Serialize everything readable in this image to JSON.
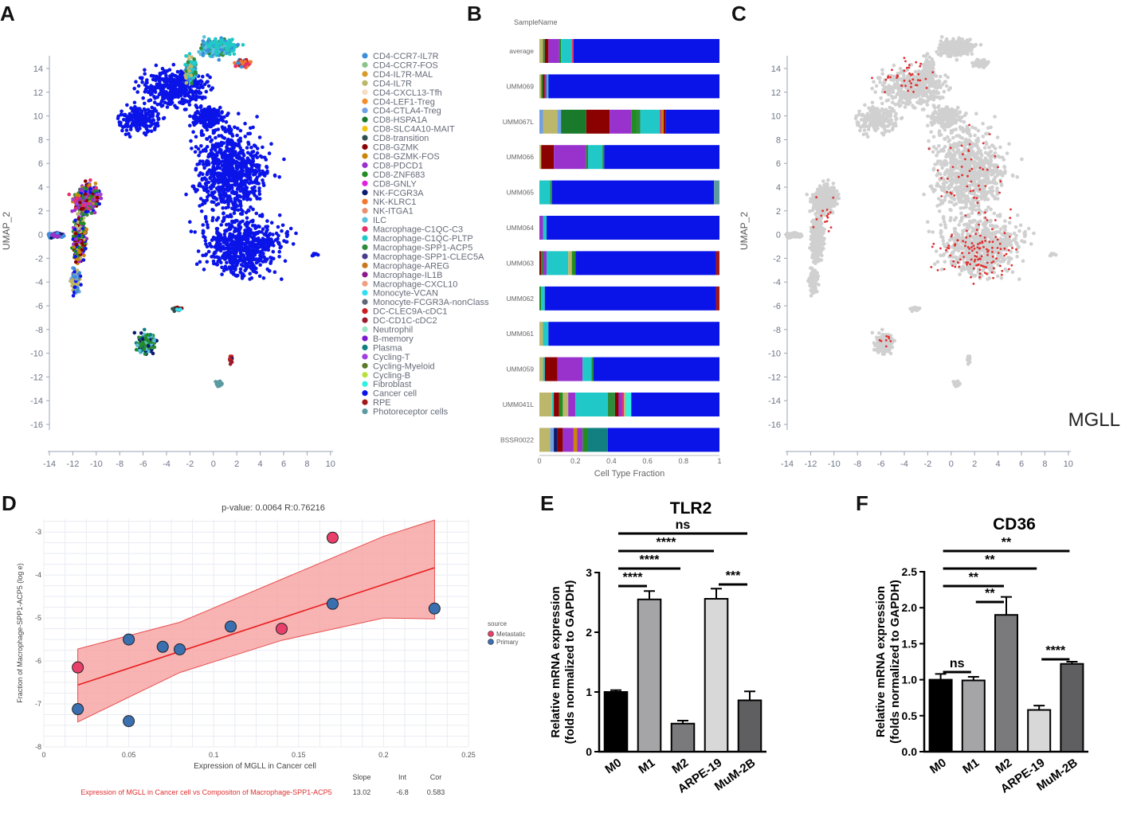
{
  "panel_labels": {
    "a": "A",
    "b": "B",
    "c": "C",
    "d": "D",
    "e": "E",
    "f": "F"
  },
  "colors": {
    "axis": "#9aa3b5",
    "umap_grey": "#d0d0d0",
    "mgll_red": "#e03030",
    "cancer_blue": "#1010ee",
    "regression": "#e82020",
    "ci_fill": "#f7a6a6",
    "metastatic": "#e8406a",
    "primary": "#3a6fb0"
  },
  "panel_a": {
    "ylabel": "UMAP_2",
    "x_ticks": [
      "-14",
      "-12",
      "-10",
      "-8",
      "-6",
      "-4",
      "-2",
      "0",
      "2",
      "4",
      "6",
      "8",
      "10"
    ],
    "y_ticks": [
      "14",
      "12",
      "10",
      "8",
      "6",
      "4",
      "2",
      "0",
      "-2",
      "-4",
      "-6",
      "-8",
      "-10",
      "-12",
      "-14",
      "-16"
    ],
    "legend": [
      {
        "label": "CD4-CCR7-IL7R",
        "color": "#3b8fd9"
      },
      {
        "label": "CD4-CCR7-FOS",
        "color": "#8bc48b"
      },
      {
        "label": "CD4-IL7R-MAL",
        "color": "#d89b2a"
      },
      {
        "label": "CD4-IL7R",
        "color": "#bdb76b"
      },
      {
        "label": "CD4-CXCL13-Tfh",
        "color": "#f7dcc4"
      },
      {
        "label": "CD4-LEF1-Treg",
        "color": "#f28e2b"
      },
      {
        "label": "CD4-CTLA4-Treg",
        "color": "#6fa0e6"
      },
      {
        "label": "CD8-HSPA1A",
        "color": "#1a7a2c"
      },
      {
        "label": "CD8-SLC4A10-MAIT",
        "color": "#f2c40f"
      },
      {
        "label": "CD8-transition",
        "color": "#2f4f4f"
      },
      {
        "label": "CD8-GZMK",
        "color": "#8b0000"
      },
      {
        "label": "CD8-GZMK-FOS",
        "color": "#c8860a"
      },
      {
        "label": "CD8-PDCD1",
        "color": "#9932cc"
      },
      {
        "label": "CD8-ZNF683",
        "color": "#228b22"
      },
      {
        "label": "CD8-GNLY",
        "color": "#e020e0"
      },
      {
        "label": "NK-FCGR3A",
        "color": "#0a1a6e"
      },
      {
        "label": "NK-KLRC1",
        "color": "#f07830"
      },
      {
        "label": "NK-ITGA1",
        "color": "#e89070"
      },
      {
        "label": "ILC",
        "color": "#5bc0de"
      },
      {
        "label": "Macrophage-C1QC-C3",
        "color": "#e8306a"
      },
      {
        "label": "Macrophage-C1QC-PLTP",
        "color": "#20c8c8"
      },
      {
        "label": "Macrophage-SPP1-ACP5",
        "color": "#2e8b3a"
      },
      {
        "label": "Macrophage-SPP1-CLEC5A",
        "color": "#483d8b"
      },
      {
        "label": "Macrophage-AREG",
        "color": "#c87820"
      },
      {
        "label": "Macrophage-IL1B",
        "color": "#8b1a8b"
      },
      {
        "label": "Macrophage-CXCL10",
        "color": "#f0a080"
      },
      {
        "label": "Monocyte-VCAN",
        "color": "#30e0f0"
      },
      {
        "label": "Monocyte-FCGR3A-nonClass",
        "color": "#606878"
      },
      {
        "label": "DC-CLEC9A-cDC1",
        "color": "#c81e1e"
      },
      {
        "label": "DC-CD1C-cDC2",
        "color": "#9a1a2a"
      },
      {
        "label": "Neutrophil",
        "color": "#98e8c8"
      },
      {
        "label": "B-memory",
        "color": "#7a1ad0"
      },
      {
        "label": "Plasma",
        "color": "#128080"
      },
      {
        "label": "Cycling-T",
        "color": "#a040e0"
      },
      {
        "label": "Cycling-Myeloid",
        "color": "#5a7a2a"
      },
      {
        "label": "Cycling-B",
        "color": "#b8e040"
      },
      {
        "label": "Fibroblast",
        "color": "#30f0e0"
      },
      {
        "label": "Cancer cell",
        "color": "#0a14e8"
      },
      {
        "label": "RPE",
        "color": "#a01818"
      },
      {
        "label": "Photoreceptor cells",
        "color": "#5a9aa0"
      }
    ]
  },
  "panel_b": {
    "title": "SampleName",
    "xlabel": "Cell Type Fraction",
    "x_ticks": [
      "0",
      "0.2",
      "0.4",
      "0.6",
      "0.8",
      "1"
    ],
    "samples": [
      {
        "name": "average",
        "segments": [
          [
            "#bdb76b",
            0.02
          ],
          [
            "#2e8b3a",
            0.01
          ],
          [
            "#8b0000",
            0.02
          ],
          [
            "#9932cc",
            0.06
          ],
          [
            "#228b22",
            0.01
          ],
          [
            "#20c8c8",
            0.06
          ],
          [
            "#e8306a",
            0.01
          ],
          [
            "#0a14e8",
            0.81
          ]
        ]
      },
      {
        "name": "UMM069",
        "segments": [
          [
            "#bdb76b",
            0.01
          ],
          [
            "#228b22",
            0.01
          ],
          [
            "#8b0000",
            0.01
          ],
          [
            "#9932cc",
            0.01
          ],
          [
            "#20c8c8",
            0.01
          ],
          [
            "#0a14e8",
            0.95
          ]
        ]
      },
      {
        "name": "UMM067L",
        "segments": [
          [
            "#6fa0e6",
            0.02
          ],
          [
            "#bdb76b",
            0.08
          ],
          [
            "#6fa0e6",
            0.02
          ],
          [
            "#1a7a2c",
            0.14
          ],
          [
            "#8b0000",
            0.13
          ],
          [
            "#9932cc",
            0.12
          ],
          [
            "#228b22",
            0.03
          ],
          [
            "#2e8b3a",
            0.02
          ],
          [
            "#20c8c8",
            0.11
          ],
          [
            "#e8306a",
            0.01
          ],
          [
            "#c8860a",
            0.01
          ],
          [
            "#8b0000",
            0.01
          ],
          [
            "#0a14e8",
            0.3
          ]
        ]
      },
      {
        "name": "UMM066",
        "segments": [
          [
            "#bdb76b",
            0.01
          ],
          [
            "#8b0000",
            0.07
          ],
          [
            "#9932cc",
            0.18
          ],
          [
            "#228b22",
            0.01
          ],
          [
            "#20c8c8",
            0.08
          ],
          [
            "#2e8b3a",
            0.01
          ],
          [
            "#0a14e8",
            0.64
          ]
        ]
      },
      {
        "name": "UMM065",
        "segments": [
          [
            "#20c8c8",
            0.06
          ],
          [
            "#2e8b3a",
            0.01
          ],
          [
            "#0a14e8",
            0.9
          ],
          [
            "#5a9aa0",
            0.03
          ]
        ]
      },
      {
        "name": "UMM064",
        "segments": [
          [
            "#9932cc",
            0.02
          ],
          [
            "#20c8c8",
            0.02
          ],
          [
            "#0a14e8",
            0.96
          ]
        ]
      },
      {
        "name": "UMM063",
        "segments": [
          [
            "#8b0000",
            0.01
          ],
          [
            "#228b22",
            0.01
          ],
          [
            "#9932cc",
            0.02
          ],
          [
            "#20c8c8",
            0.12
          ],
          [
            "#bdb76b",
            0.02
          ],
          [
            "#228b22",
            0.02
          ],
          [
            "#0a14e8",
            0.78
          ],
          [
            "#a01818",
            0.02
          ]
        ]
      },
      {
        "name": "UMM062",
        "segments": [
          [
            "#228b22",
            0.01
          ],
          [
            "#20c8c8",
            0.02
          ],
          [
            "#0a14e8",
            0.95
          ],
          [
            "#a01818",
            0.02
          ]
        ]
      },
      {
        "name": "UMM061",
        "segments": [
          [
            "#bdb76b",
            0.02
          ],
          [
            "#20c8c8",
            0.03
          ],
          [
            "#0a14e8",
            0.95
          ]
        ]
      },
      {
        "name": "UMM059",
        "segments": [
          [
            "#bdb76b",
            0.02
          ],
          [
            "#20c8c8",
            0.01
          ],
          [
            "#8b0000",
            0.07
          ],
          [
            "#9932cc",
            0.14
          ],
          [
            "#20c8c8",
            0.05
          ],
          [
            "#228b22",
            0.01
          ],
          [
            "#0a14e8",
            0.7
          ]
        ]
      },
      {
        "name": "UMM041L",
        "segments": [
          [
            "#bdb76b",
            0.07
          ],
          [
            "#20c8c8",
            0.01
          ],
          [
            "#8b0000",
            0.03
          ],
          [
            "#228b22",
            0.02
          ],
          [
            "#bdb76b",
            0.03
          ],
          [
            "#9932cc",
            0.04
          ],
          [
            "#20c8c8",
            0.18
          ],
          [
            "#2e8b3a",
            0.04
          ],
          [
            "#8b0000",
            0.02
          ],
          [
            "#9932cc",
            0.02
          ],
          [
            "#e8306a",
            0.01
          ],
          [
            "#bdb76b",
            0.01
          ],
          [
            "#30f0e0",
            0.03
          ],
          [
            "#0a14e8",
            0.49
          ]
        ]
      },
      {
        "name": "BSSR0022",
        "segments": [
          [
            "#bdb76b",
            0.06
          ],
          [
            "#6fa0e6",
            0.02
          ],
          [
            "#0a1a6e",
            0.02
          ],
          [
            "#8b0000",
            0.03
          ],
          [
            "#9932cc",
            0.06
          ],
          [
            "#c8860a",
            0.02
          ],
          [
            "#9932cc",
            0.03
          ],
          [
            "#228b22",
            0.03
          ],
          [
            "#128080",
            0.11
          ],
          [
            "#0a14e8",
            0.62
          ]
        ]
      }
    ]
  },
  "panel_c": {
    "ylabel": "UMAP_2",
    "gene": "MGLL",
    "x_ticks": [
      "-14",
      "-12",
      "-10",
      "-8",
      "-6",
      "-4",
      "-2",
      "0",
      "2",
      "4",
      "6",
      "8",
      "10"
    ],
    "y_ticks": [
      "14",
      "12",
      "10",
      "8",
      "6",
      "4",
      "2",
      "0",
      "-2",
      "-4",
      "-6",
      "-8",
      "-10",
      "-12",
      "-14",
      "-16"
    ]
  },
  "panel_d": {
    "title": "p-value: 0.0064    R:0.76216",
    "xlabel": "Expression of MGLL in Cancer cell",
    "ylabel": "Fraction of Macrophage-SPP1-ACP5 (log e)",
    "legend_title": "source",
    "legend_items": [
      "Metastatic",
      "Primary"
    ],
    "caption": "Expression of MGLL in Cancer cell vs Compositon of Macrophage-SPP1-ACP5",
    "stats_headers": [
      "Slope",
      "Int",
      "Cor"
    ],
    "stats_values": [
      "13.02",
      "-6.8",
      "0.583"
    ]
  },
  "panel_e": {
    "title": "TLR2",
    "ylabel": "Relative  mRNA  expression",
    "ylabel2": "(folds normalized to GAPDH)",
    "y_ticks": [
      "0",
      "1",
      "2",
      "3"
    ],
    "sig": [
      {
        "label": "ns"
      },
      {
        "label": "****"
      },
      {
        "label": "****"
      },
      {
        "label": "****"
      },
      {
        "label": "***"
      }
    ]
  },
  "panel_f": {
    "title": "CD36",
    "ylabel": "Relative  mRNA  expression",
    "ylabel2": "(folds normalized to GAPDH)",
    "y_ticks": [
      "0.0",
      "0.5",
      "1.0",
      "1.5",
      "2.0",
      "2.5"
    ],
    "sig": [
      {
        "label": "**"
      },
      {
        "label": "**"
      },
      {
        "label": "**"
      },
      {
        "label": "**"
      },
      {
        "label": "ns"
      },
      {
        "label": "****"
      }
    ]
  },
  "chart_data": [
    {
      "type": "scatter",
      "panel": "D",
      "title": "p-value: 0.0064    R:0.76216",
      "xlabel": "Expression of MGLL in Cancer cell",
      "ylabel": "Fraction of Macrophage-SPP1-ACP5 (log e)",
      "xlim": [
        0,
        0.25
      ],
      "ylim": [
        -8,
        -2.7
      ],
      "x_ticks": [
        0,
        0.05,
        0.1,
        0.15,
        0.2,
        0.25
      ],
      "y_ticks": [
        -8,
        -7,
        -6,
        -5,
        -4,
        -3
      ],
      "x_tick_labels": [
        "0",
        "0.05",
        "0.1",
        "0.15",
        "0.2",
        "0.25"
      ],
      "y_tick_labels": [
        "-8",
        "-7",
        "-6",
        "-5",
        "-4",
        "-3"
      ],
      "series": [
        {
          "name": "Metastatic",
          "color": "#e8406a",
          "points": [
            [
              0.02,
              -6.15
            ],
            [
              0.14,
              -5.25
            ],
            [
              0.17,
              -3.13
            ]
          ]
        },
        {
          "name": "Primary",
          "color": "#3a6fb0",
          "points": [
            [
              0.02,
              -7.12
            ],
            [
              0.05,
              -5.5
            ],
            [
              0.05,
              -7.4
            ],
            [
              0.07,
              -5.67
            ],
            [
              0.08,
              -5.73
            ],
            [
              0.11,
              -5.2
            ],
            [
              0.17,
              -4.67
            ],
            [
              0.23,
              -4.78
            ]
          ]
        }
      ],
      "regression": {
        "x": [
          0.02,
          0.23
        ],
        "y": [
          -6.56,
          -3.83
        ]
      },
      "ci_upper": [
        [
          0.02,
          -5.72
        ],
        [
          0.08,
          -5.1
        ],
        [
          0.14,
          -4.1
        ],
        [
          0.2,
          -3.1
        ],
        [
          0.23,
          -2.72
        ]
      ],
      "ci_lower": [
        [
          0.02,
          -7.42
        ],
        [
          0.08,
          -6.27
        ],
        [
          0.14,
          -5.52
        ],
        [
          0.2,
          -5.0
        ],
        [
          0.23,
          -5.02
        ]
      ]
    },
    {
      "type": "bar",
      "panel": "E",
      "title": "TLR2",
      "categories": [
        "M0",
        "M1",
        "M2",
        "ARPE-19",
        "MuM-2B"
      ],
      "values": [
        1.0,
        2.55,
        0.47,
        2.56,
        0.86
      ],
      "errors": [
        0.03,
        0.14,
        0.05,
        0.17,
        0.15
      ],
      "bar_colors": [
        "#000000",
        "#a5a5a8",
        "#7a7a7d",
        "#d8d8d8",
        "#5f5f62"
      ],
      "ylim": [
        0,
        3
      ]
    },
    {
      "type": "bar",
      "panel": "F",
      "title": "CD36",
      "categories": [
        "M0",
        "M1",
        "M2",
        "ARPE-19",
        "MuM-2B"
      ],
      "values": [
        1.0,
        0.99,
        1.9,
        0.58,
        1.22
      ],
      "errors": [
        0.08,
        0.05,
        0.25,
        0.06,
        0.03
      ],
      "bar_colors": [
        "#000000",
        "#a5a5a8",
        "#7a7a7d",
        "#d8d8d8",
        "#5f5f62"
      ],
      "ylim": [
        0,
        2.5
      ]
    }
  ]
}
